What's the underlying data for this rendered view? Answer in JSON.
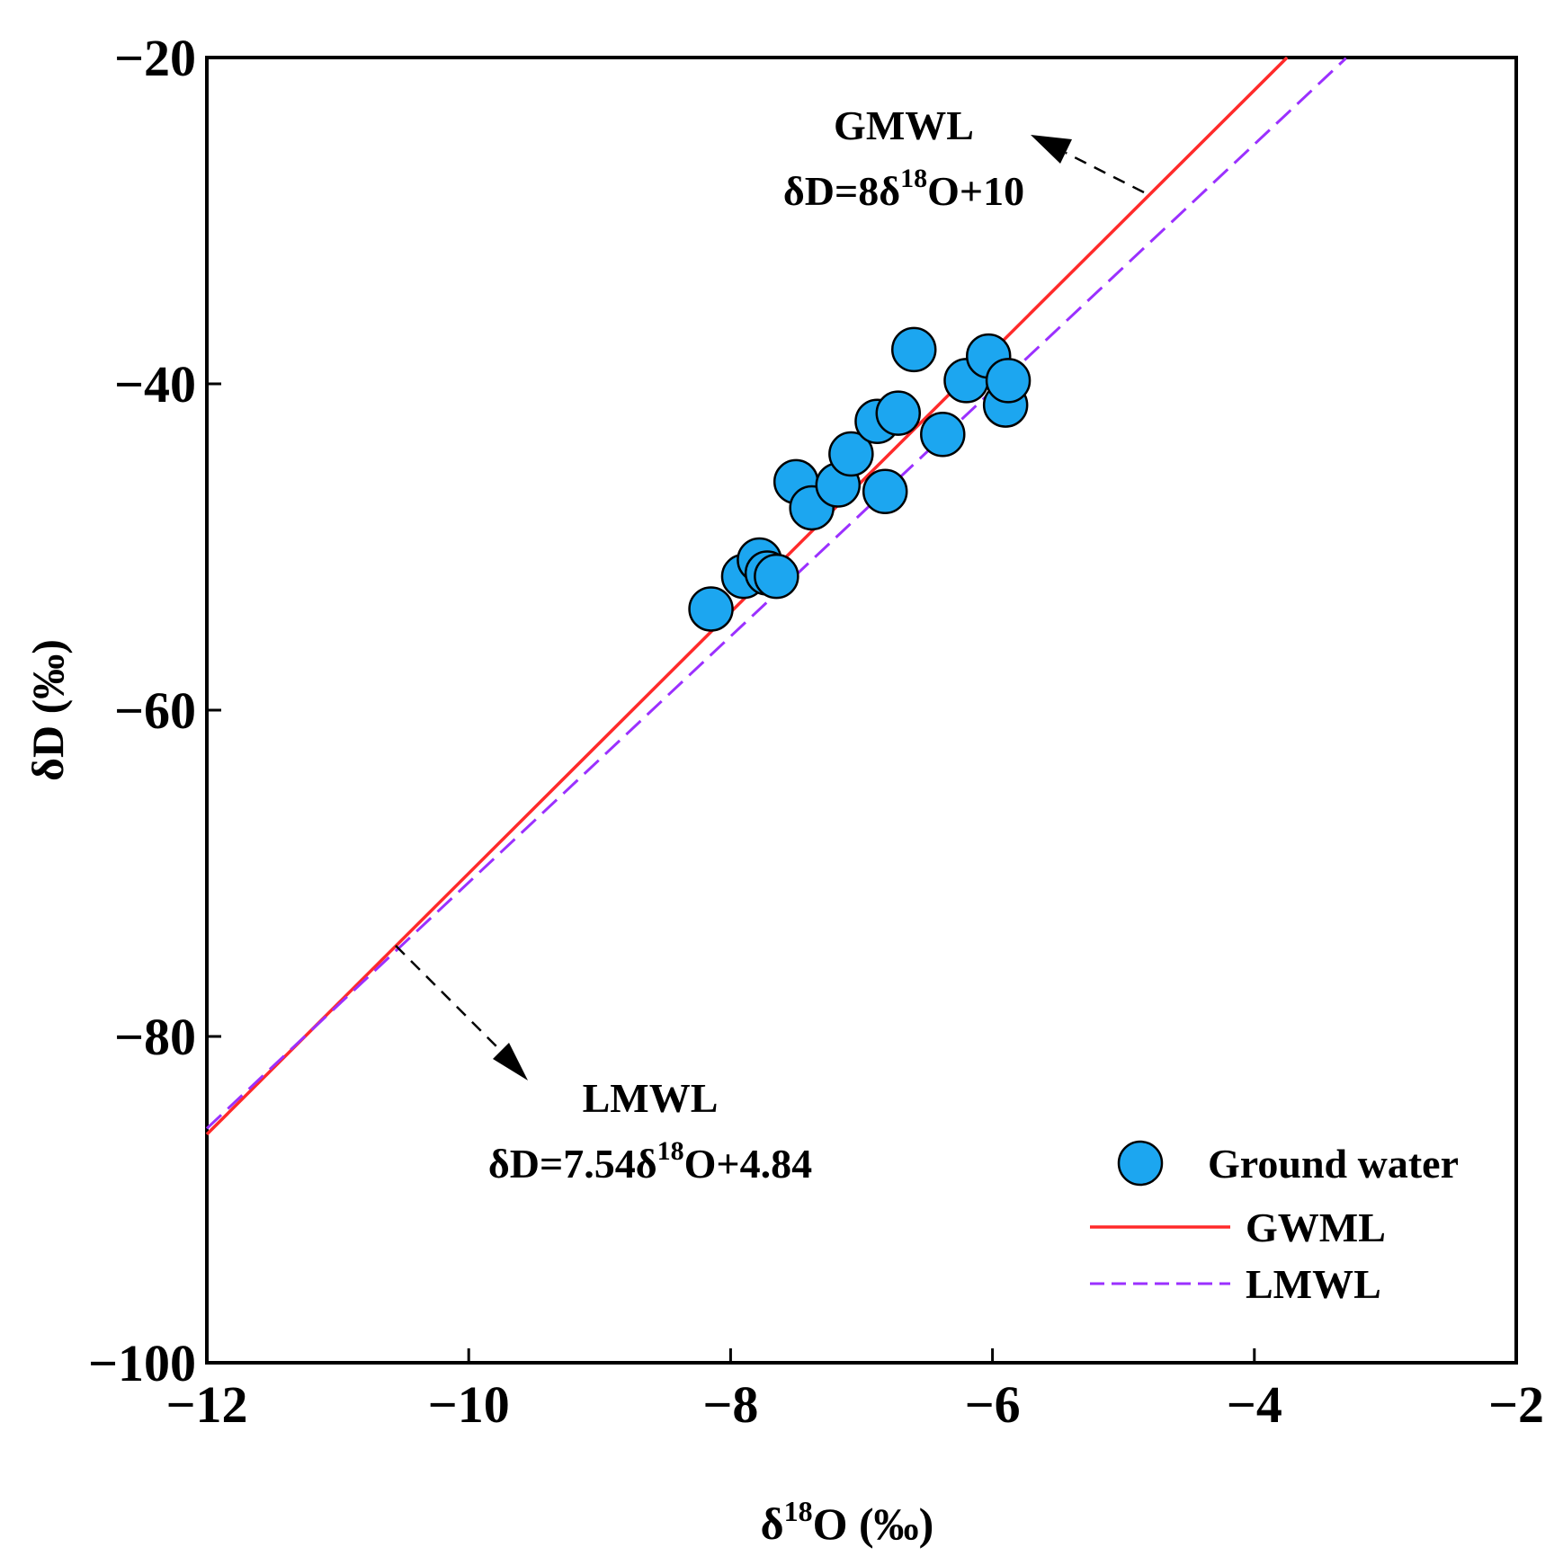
{
  "chart_data": {
    "type": "scatter",
    "title": "",
    "xlabel": {
      "main": "δ",
      "sup": "18",
      "rest": "O (‰)"
    },
    "ylabel": "δD (‰)",
    "xlim": [
      -12,
      -2
    ],
    "ylim": [
      -100,
      -20
    ],
    "xticks": [
      -12,
      -10,
      -8,
      -6,
      -4,
      -2
    ],
    "yticks": [
      -100,
      -80,
      -60,
      -40,
      -20
    ],
    "xtick_labels": [
      "−12",
      "−10",
      "−8",
      "−6",
      "−4",
      "−2"
    ],
    "ytick_labels": [
      "−100",
      "−80",
      "−60",
      "−40",
      "−20"
    ],
    "grid": false,
    "legend_position": "bottom-right",
    "series": [
      {
        "name": "Ground water",
        "kind": "scatter",
        "color": "#1ca6f0",
        "x": [
          -8.15,
          -7.9,
          -7.78,
          -7.72,
          -7.65,
          -7.5,
          -7.38,
          -7.18,
          -7.08,
          -6.88,
          -6.82,
          -6.72,
          -6.6,
          -6.38,
          -6.2,
          -6.03,
          -5.9,
          -5.88
        ],
        "y": [
          -53.8,
          -51.8,
          -50.8,
          -51.6,
          -51.8,
          -46.0,
          -47.6,
          -46.2,
          -44.3,
          -42.3,
          -46.6,
          -41.8,
          -37.9,
          -43.1,
          -39.8,
          -38.3,
          -41.3,
          -39.8
        ]
      },
      {
        "name": "GWML",
        "kind": "line",
        "color": "#ff2a2a",
        "dash": "solid",
        "slope": 8,
        "intercept": 10,
        "x_range": [
          -12,
          -3.75
        ]
      },
      {
        "name": "LMWL",
        "kind": "line",
        "color": "#9b30ff",
        "dash": "dashed",
        "slope": 7.54,
        "intercept": 4.84,
        "x_range": [
          -12,
          -3.3
        ]
      }
    ],
    "annotations": [
      {
        "id": "gmwl",
        "title": "GMWL",
        "eq_pre": "δD=8δ",
        "eq_sup": "18",
        "eq_post": "O+10"
      },
      {
        "id": "lmwl",
        "title": "LMWL",
        "eq_pre": "δD=7.54δ",
        "eq_sup": "18",
        "eq_post": "O+4.84"
      }
    ]
  },
  "legend": {
    "ground_water": "Ground water",
    "gwml": "GWML",
    "lmwl": "LMWL"
  }
}
